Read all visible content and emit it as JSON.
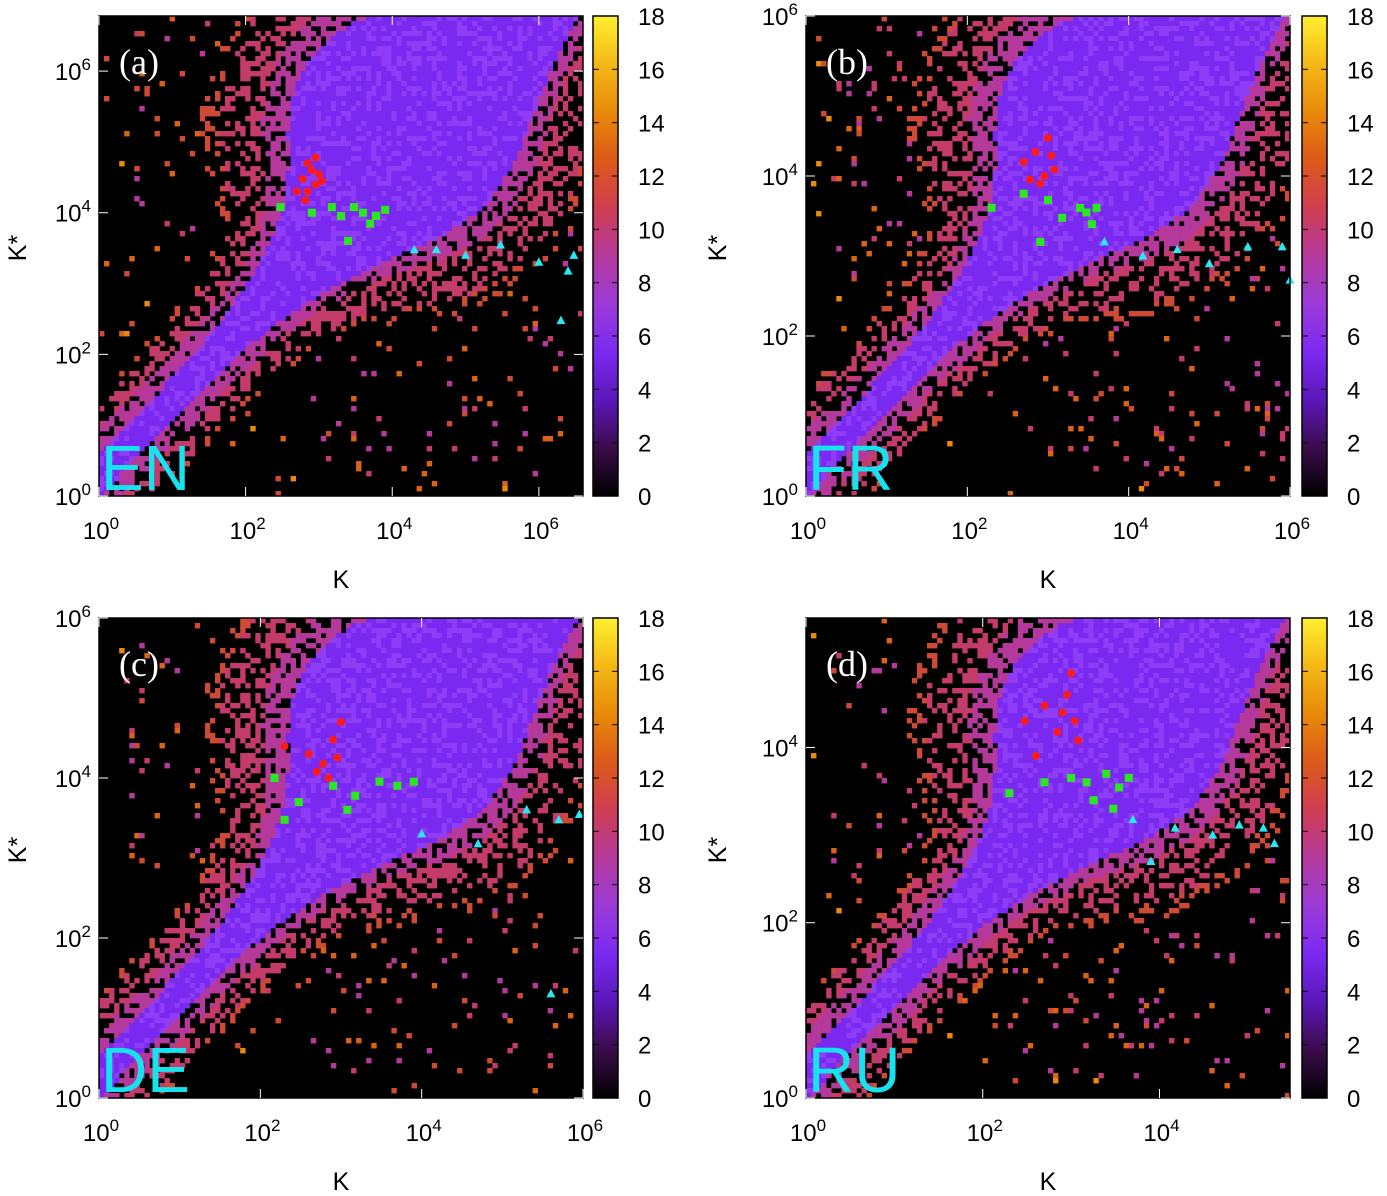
{
  "chart_data": [
    {
      "type": "heatmap",
      "panel_label": "(a)",
      "language": "EN",
      "xlabel": "K",
      "ylabel": "K*",
      "scale": "log-log",
      "xlim": [
        1,
        4000000
      ],
      "ylim": [
        1,
        6000000
      ],
      "xticks": [
        "10^0",
        "10^2",
        "10^4",
        "10^6"
      ],
      "yticks": [
        "10^0",
        "10^2",
        "10^4",
        "10^6"
      ],
      "colorbar": {
        "min": 0,
        "max": 18,
        "ticks": [
          "0",
          "2",
          "4",
          "6",
          "8",
          "10",
          "12",
          "14",
          "16",
          "18"
        ]
      },
      "markers": {
        "red_circles": [
          [
            600,
            30000
          ],
          [
            700,
            50000
          ],
          [
            800,
            40000
          ],
          [
            900,
            25000
          ],
          [
            700,
            20000
          ],
          [
            500,
            20000
          ],
          [
            1000,
            35000
          ],
          [
            900,
            60000
          ],
          [
            1100,
            28000
          ],
          [
            650,
            15000
          ]
        ],
        "green_squares": [
          [
            300,
            12000
          ],
          [
            800,
            10000
          ],
          [
            1500,
            12000
          ],
          [
            2000,
            9000
          ],
          [
            3000,
            12000
          ],
          [
            4000,
            10000
          ],
          [
            6000,
            9000
          ],
          [
            8000,
            11000
          ],
          [
            2500,
            4000
          ],
          [
            5000,
            7000
          ]
        ],
        "cyan_triangles": [
          [
            20000,
            3000
          ],
          [
            40000,
            3000
          ],
          [
            100000,
            2500
          ],
          [
            300000,
            3500
          ],
          [
            1000000,
            2000
          ],
          [
            2500000,
            1500
          ],
          [
            3000000,
            2500
          ],
          [
            2000000,
            300
          ]
        ]
      }
    },
    {
      "type": "heatmap",
      "panel_label": "(b)",
      "language": "FR",
      "xlabel": "K",
      "ylabel": "K*",
      "scale": "log-log",
      "xlim": [
        1,
        1000000
      ],
      "ylim": [
        1,
        1000000
      ],
      "xticks": [
        "10^0",
        "10^2",
        "10^4",
        "10^6"
      ],
      "yticks": [
        "10^0",
        "10^2",
        "10^4",
        "10^6"
      ],
      "colorbar": {
        "min": 0,
        "max": 18,
        "ticks": [
          "0",
          "2",
          "4",
          "6",
          "8",
          "10",
          "12",
          "14",
          "16",
          "18"
        ]
      },
      "markers": {
        "red_circles": [
          [
            500,
            15000
          ],
          [
            700,
            20000
          ],
          [
            900,
            10000
          ],
          [
            1200,
            12000
          ],
          [
            1000,
            30000
          ],
          [
            800,
            8000
          ],
          [
            1100,
            18000
          ],
          [
            600,
            9000
          ]
        ],
        "green_squares": [
          [
            200,
            4000
          ],
          [
            500,
            6000
          ],
          [
            1000,
            5000
          ],
          [
            1500,
            3000
          ],
          [
            2500,
            4000
          ],
          [
            3000,
            3500
          ],
          [
            3500,
            2500
          ],
          [
            4000,
            4000
          ],
          [
            800,
            1500
          ]
        ],
        "cyan_triangles": [
          [
            5000,
            1500
          ],
          [
            15000,
            1000
          ],
          [
            40000,
            1200
          ],
          [
            100000,
            800
          ],
          [
            300000,
            1300
          ],
          [
            800000,
            1300
          ],
          [
            1000000,
            500
          ]
        ]
      }
    },
    {
      "type": "heatmap",
      "panel_label": "(c)",
      "language": "DE",
      "xlabel": "K",
      "ylabel": "K*",
      "scale": "log-log",
      "xlim": [
        1,
        1000000
      ],
      "ylim": [
        1,
        1000000
      ],
      "xticks": [
        "10^0",
        "10^2",
        "10^4",
        "10^6"
      ],
      "yticks": [
        "10^0",
        "10^2",
        "10^4",
        "10^6"
      ],
      "colorbar": {
        "min": 0,
        "max": 18,
        "ticks": [
          "0",
          "2",
          "4",
          "6",
          "8",
          "10",
          "12",
          "14",
          "16",
          "18"
        ]
      },
      "markers": {
        "red_circles": [
          [
            200,
            25000
          ],
          [
            400,
            20000
          ],
          [
            600,
            15000
          ],
          [
            800,
            30000
          ],
          [
            1000,
            50000
          ],
          [
            700,
            10000
          ],
          [
            500,
            12000
          ],
          [
            900,
            18000
          ]
        ],
        "green_squares": [
          [
            150,
            10000
          ],
          [
            300,
            5000
          ],
          [
            800,
            8000
          ],
          [
            1500,
            6000
          ],
          [
            3000,
            9000
          ],
          [
            5000,
            8000
          ],
          [
            8000,
            9000
          ],
          [
            1200,
            4000
          ],
          [
            200,
            3000
          ]
        ],
        "cyan_triangles": [
          [
            10000,
            2000
          ],
          [
            50000,
            1500
          ],
          [
            200000,
            4000
          ],
          [
            500000,
            3000
          ],
          [
            900000,
            3500
          ],
          [
            400000,
            20
          ]
        ]
      }
    },
    {
      "type": "heatmap",
      "panel_label": "(d)",
      "language": "RU",
      "xlabel": "K",
      "ylabel": "K*",
      "scale": "log-log",
      "xlim": [
        1,
        300000
      ],
      "ylim": [
        1,
        300000
      ],
      "xticks": [
        "10^0",
        "10^2",
        "10^4"
      ],
      "yticks": [
        "10^0",
        "10^2",
        "10^4"
      ],
      "colorbar": {
        "min": 0,
        "max": 18,
        "ticks": [
          "0",
          "2",
          "4",
          "6",
          "8",
          "10",
          "12",
          "14",
          "16",
          "18"
        ]
      },
      "markers": {
        "red_circles": [
          [
            300,
            20000
          ],
          [
            500,
            30000
          ],
          [
            700,
            15000
          ],
          [
            900,
            40000
          ],
          [
            1000,
            70000
          ],
          [
            1100,
            20000
          ],
          [
            1200,
            12000
          ],
          [
            400,
            8000
          ],
          [
            800,
            25000
          ]
        ],
        "green_squares": [
          [
            200,
            3000
          ],
          [
            500,
            4000
          ],
          [
            1000,
            4500
          ],
          [
            1500,
            4000
          ],
          [
            2500,
            5000
          ],
          [
            3500,
            3500
          ],
          [
            4500,
            4500
          ],
          [
            1800,
            2500
          ],
          [
            3000,
            2000
          ]
        ],
        "cyan_triangles": [
          [
            5000,
            1500
          ],
          [
            15000,
            1200
          ],
          [
            40000,
            1000
          ],
          [
            80000,
            1300
          ],
          [
            150000,
            1200
          ],
          [
            200000,
            800
          ],
          [
            8000,
            500
          ]
        ]
      }
    }
  ],
  "colormap": [
    "#000000",
    "#3a0c4a",
    "#5a17b8",
    "#7a2af0",
    "#8e3cf5",
    "#a23fc7",
    "#b4399a",
    "#c43a6a",
    "#cf4a34",
    "#dd6314",
    "#ea8a0a",
    "#f5b816",
    "#ffef30"
  ],
  "label_color": "#17e3ef"
}
